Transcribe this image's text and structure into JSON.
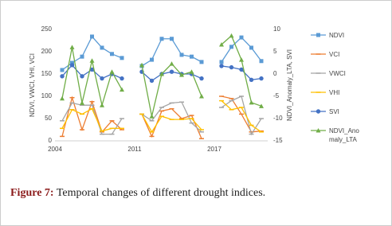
{
  "chart_data": {
    "type": "line",
    "y_label": "NDVI, VWCI, VHI, VCI",
    "y2_label": "NDVI_Anomaly_LTA, SVI",
    "categories": [
      "2004",
      null,
      null,
      null,
      null,
      null,
      null,
      null,
      "2011",
      null,
      null,
      null,
      null,
      null,
      null,
      null,
      "2017",
      null,
      null,
      null,
      null
    ],
    "ylim": [
      0,
      250
    ],
    "yticks": [
      0,
      50,
      100,
      150,
      200,
      250
    ],
    "y2lim": [
      -15,
      10
    ],
    "y2ticks": [
      -15,
      -10,
      -5,
      0,
      5,
      10
    ],
    "grid": false,
    "legend": "right",
    "series": [
      {
        "name": "NDVI",
        "color": "#5b9bd5",
        "marker": "square",
        "values": [
          159,
          175,
          189,
          234,
          209,
          195,
          186,
          null,
          168,
          182,
          229,
          229,
          193,
          189,
          177,
          null,
          177,
          211,
          232,
          209,
          179
        ]
      },
      {
        "name": "VCI",
        "color": "#ed7d31",
        "marker": "dash",
        "values": [
          10,
          97,
          25,
          88,
          20,
          45,
          25,
          null,
          60,
          10,
          67,
          72,
          50,
          57,
          5,
          null,
          100,
          95,
          60,
          20,
          22
        ]
      },
      {
        "name": "VWCI",
        "color": "#a5a5a5",
        "marker": "dash",
        "values": [
          45,
          85,
          80,
          80,
          15,
          15,
          50,
          null,
          60,
          45,
          75,
          85,
          87,
          40,
          20,
          null,
          75,
          90,
          100,
          15,
          50
        ]
      },
      {
        "name": "VHI",
        "color": "#ffc000",
        "marker": "dash",
        "values": [
          28,
          70,
          60,
          72,
          22,
          28,
          28,
          null,
          60,
          20,
          55,
          48,
          48,
          50,
          25,
          null,
          90,
          70,
          75,
          35,
          20
        ]
      },
      {
        "name": "SVI",
        "color": "#4472c4",
        "marker": "circle",
        "axis": "y2",
        "values": [
          -0.5,
          2,
          -0.5,
          1,
          -1,
          0,
          -1,
          null,
          0.5,
          -1.5,
          0,
          0.5,
          0,
          0,
          -1,
          null,
          1.8,
          1.5,
          1,
          -1.3,
          -1
        ]
      },
      {
        "name": "NDVI_Anomaly_LTA",
        "color": "#70ad47",
        "marker": "triangle",
        "axis": "y2",
        "values": [
          -5.5,
          6,
          -6.5,
          3,
          -7,
          0.5,
          -3.5,
          null,
          2,
          -9.5,
          0,
          2.3,
          -0.2,
          0.5,
          -5,
          null,
          6.6,
          8.6,
          3.2,
          -6.4,
          -7.2
        ]
      }
    ]
  },
  "caption": {
    "label": "Figure 7:",
    "text": "Temporal changes of different drought indices."
  }
}
